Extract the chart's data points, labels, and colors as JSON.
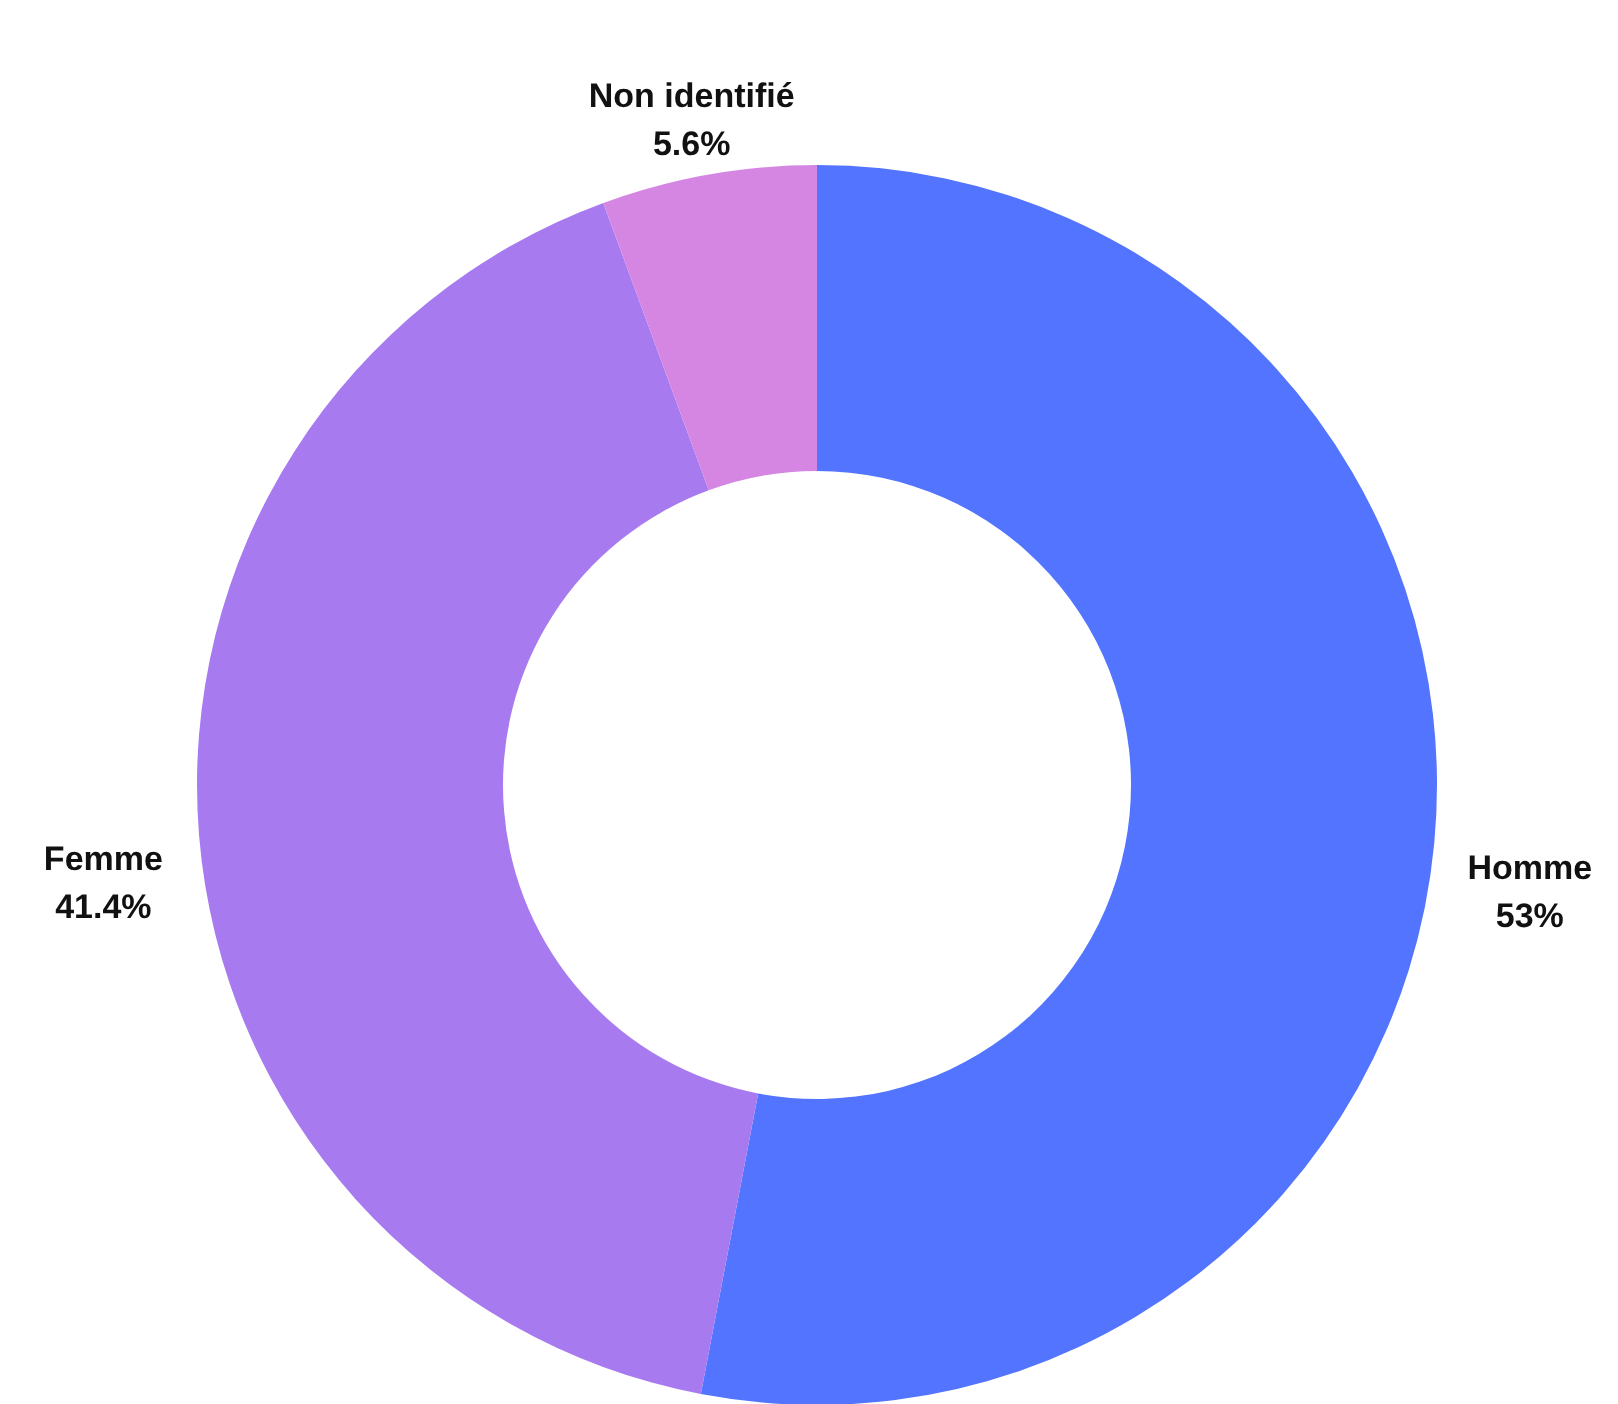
{
  "chart_data": {
    "type": "donut",
    "categories": [
      "Homme",
      "Femme",
      "Non identifié"
    ],
    "values": [
      53,
      41.4,
      5.6
    ],
    "colors": [
      "#5274ff",
      "#a87af0",
      "#d586e3"
    ],
    "value_labels": [
      "53%",
      "41.4%",
      "5.6%"
    ]
  }
}
